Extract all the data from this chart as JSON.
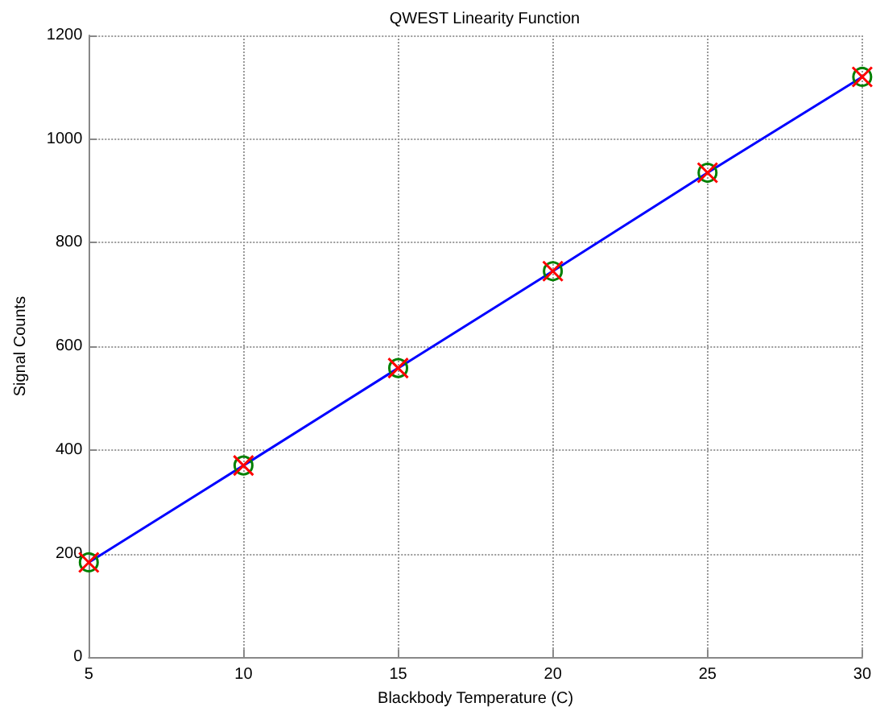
{
  "chart_data": {
    "type": "line",
    "title": "QWEST Linearity Function",
    "xlabel": "Blackbody Temperature (C)",
    "ylabel": "Signal Counts",
    "x": [
      5,
      10,
      15,
      20,
      25,
      30
    ],
    "series": [
      {
        "color": "#0000ff",
        "values": [
          183,
          370,
          558,
          745,
          935,
          1120
        ],
        "marker": "none",
        "line_style": "solid"
      },
      {
        "type": "scatter",
        "color": "#008000",
        "values": [
          183,
          370,
          558,
          745,
          935,
          1120
        ],
        "marker": "circle"
      },
      {
        "type": "scatter",
        "color": "#ff0000",
        "values": [
          183,
          370,
          558,
          745,
          935,
          1120
        ],
        "marker": "cross"
      }
    ],
    "xlim": [
      5,
      30
    ],
    "xticks": [
      5,
      10,
      15,
      20,
      25,
      30
    ],
    "ylim": [
      0,
      1200
    ],
    "yticks": [
      0,
      200,
      400,
      600,
      800,
      1000,
      1200
    ],
    "grid": true
  }
}
